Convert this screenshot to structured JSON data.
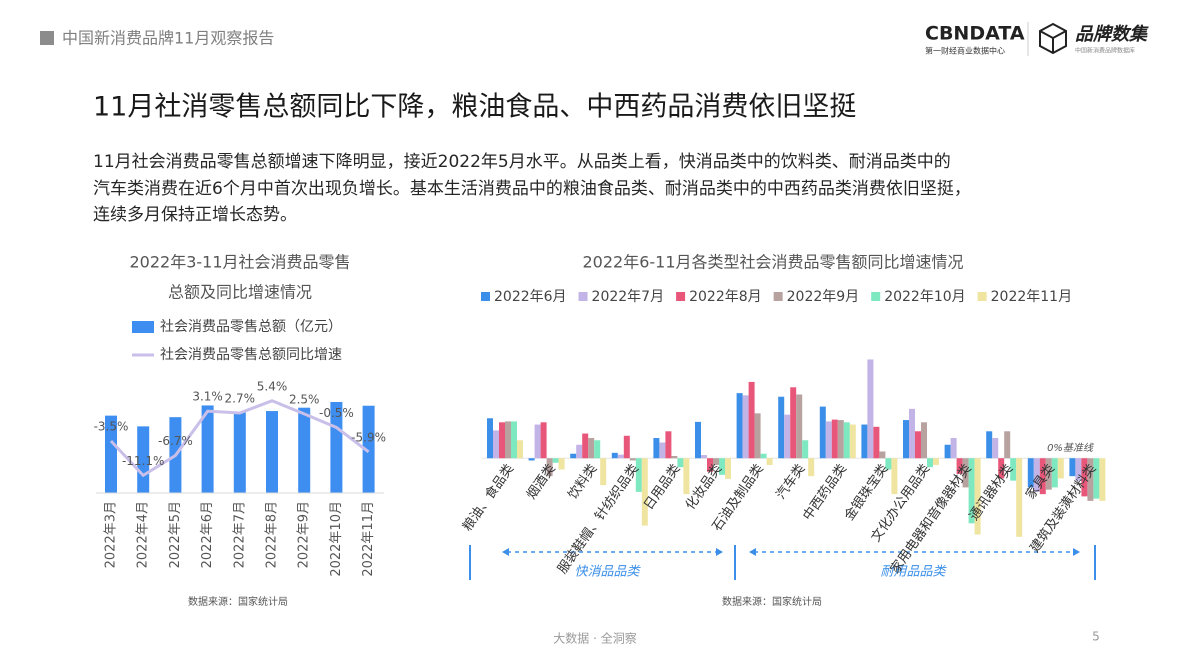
{
  "header": {
    "report": "中国新消费品牌11月观察报告",
    "logo1": "CBNDATA",
    "logo1_sub": "第一财经商业数据中心",
    "logo2": "品牌数集",
    "logo2_sub": "中国新消费品牌数据库"
  },
  "title": "11月社消零售总额同比下降，粮油食品、中西药品消费依旧坚挺",
  "paragraph": [
    "11月社会消费品零售总额增速下降明显，接近2022年5月水平。从品类上看，快消品类中的饮料类、耐消品类中的",
    "汽车类消费在近6个月中首次出现负增长。基本生活消费品中的粮油食品类、耐消品类中的中西药品类消费依旧坚挺，",
    "连续多月保持正增长态势。"
  ],
  "chart_data": [
    {
      "type": "combo",
      "title": [
        "2022年3-11月社会消费品零售",
        "总额及同比增速情况"
      ],
      "categories": [
        "2022年3月",
        "2022年4月",
        "2022年5月",
        "2022年6月",
        "2022年7月",
        "2022年8月",
        "2022年9月",
        "2022年10月",
        "2022年11月"
      ],
      "series": [
        {
          "name": "社会消费品零售总额（亿元）",
          "type": "bar",
          "color": "#3d8ef0",
          "values": [
            34233,
            29483,
            33547,
            38742,
            35870,
            36258,
            37745,
            40271,
            38615
          ]
        },
        {
          "name": "社会消费品零售总额同比增速",
          "type": "line",
          "axis": "y2",
          "color": "#c9bfe9",
          "values": [
            -3.5,
            -11.1,
            -6.7,
            3.1,
            2.7,
            5.4,
            2.5,
            -0.5,
            -5.9
          ],
          "value_labels": [
            "-3.5%",
            "-11.1%",
            "-6.7%",
            "3.1%",
            "2.7%",
            "5.4%",
            "2.5%",
            "-0.5%",
            "-5.9%"
          ]
        }
      ],
      "ylim": [
        0,
        50000
      ],
      "y2lim": [
        -15,
        10
      ],
      "source": "数据来源：国家统计局"
    },
    {
      "type": "bar",
      "title": "2022年6-11月各类型社会消费品零售额同比增速情况",
      "categories": [
        "粮油、食品类",
        "烟酒类",
        "饮料类",
        "服装鞋帽、针纺织品类",
        "日用品类",
        "化妆品类",
        "石油及制品类",
        "汽车类",
        "中西药品类",
        "金银珠宝类",
        "文化办公用品类",
        "家用电器和音像器材类",
        "通讯器材类",
        "家具类",
        "建筑及装潢材料类"
      ],
      "series": [
        {
          "name": "2022年6月",
          "color": "#3b8fe8",
          "values": [
            8.9,
            -0.5,
            1.0,
            1.2,
            4.5,
            8.1,
            14.5,
            13.7,
            11.5,
            7.5,
            8.5,
            3.0,
            6.0,
            -6.5,
            -4.0
          ]
        },
        {
          "name": "2022年7月",
          "color": "#c2b4e6",
          "values": [
            6.2,
            7.5,
            3.0,
            0.8,
            3.5,
            0.7,
            14.0,
            9.7,
            8.2,
            22.0,
            11.0,
            4.5,
            4.5,
            -7.5,
            -5.0
          ]
        },
        {
          "name": "2022年8月",
          "color": "#e8577a",
          "values": [
            8.0,
            8.0,
            5.5,
            5.0,
            6.0,
            -3.0,
            17.0,
            15.8,
            8.6,
            7.0,
            6.0,
            -3.5,
            -4.5,
            -8.0,
            -8.5
          ]
        },
        {
          "name": "2022年9月",
          "color": "#b8a2a0",
          "values": [
            8.2,
            -4.0,
            4.5,
            -0.5,
            0.5,
            -1.5,
            10.0,
            14.2,
            8.5,
            1.5,
            8.0,
            -6.5,
            6.0,
            -7.0,
            -9.5
          ]
        },
        {
          "name": "2022年10月",
          "color": "#7ee8c0",
          "values": [
            8.2,
            -1.0,
            4.0,
            -7.5,
            -2.0,
            -3.7,
            1.0,
            4.0,
            8.0,
            -2.5,
            -2.0,
            -14.5,
            -5.0,
            -6.5,
            -9.0
          ]
        },
        {
          "name": "2022年11月",
          "color": "#efe4a0",
          "values": [
            4.0,
            -2.5,
            -6.0,
            -15.0,
            -8.0,
            -4.6,
            -1.5,
            -4.0,
            7.5,
            -8.0,
            -1.5,
            -17.0,
            -17.5,
            -4.5,
            -9.5
          ]
        }
      ],
      "ylim": [
        -20,
        25
      ],
      "baseline_label": "0%基准线",
      "groups": [
        "快消品品类",
        "耐用品品类"
      ],
      "source": "数据来源：国家统计局"
    }
  ],
  "footer": {
    "tagline": "大数据 · 全洞察",
    "page": "5"
  }
}
